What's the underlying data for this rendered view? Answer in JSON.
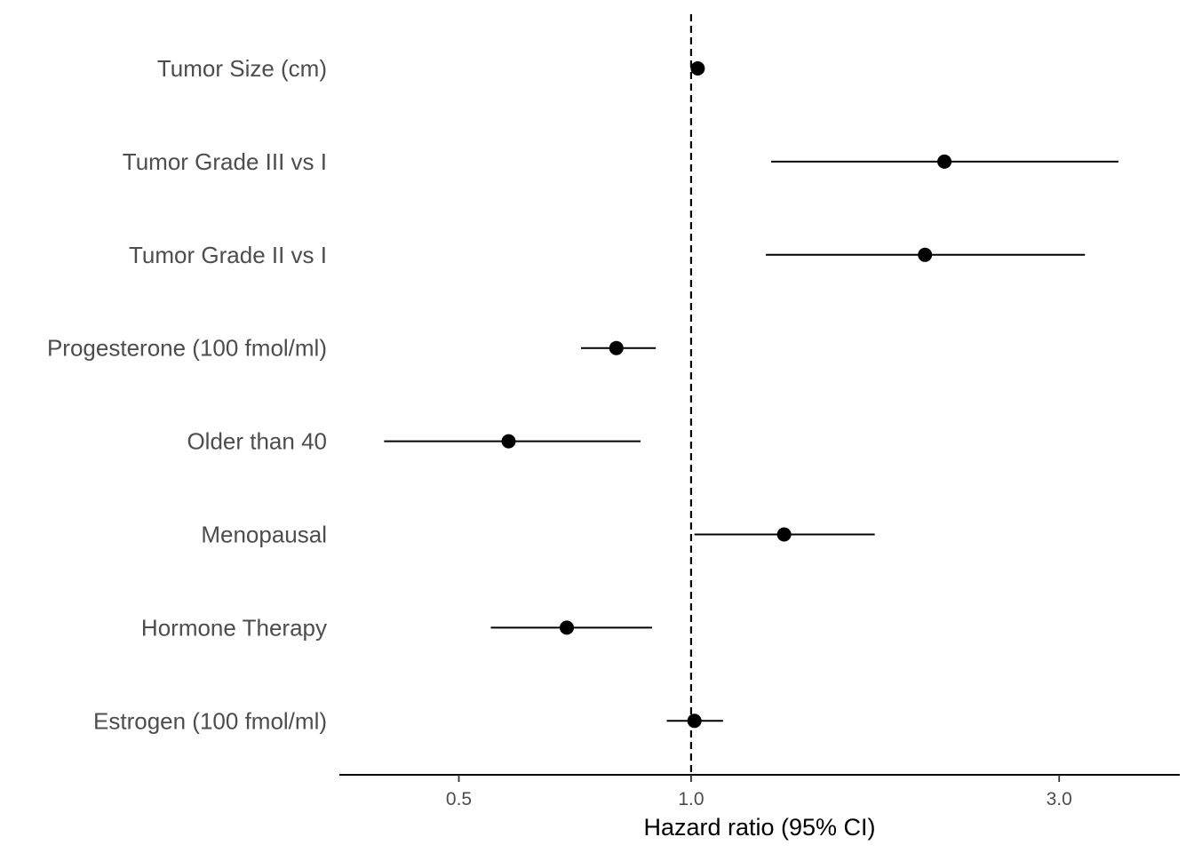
{
  "chart_data": {
    "type": "forest",
    "xlabel": "Hazard ratio (95% CI)",
    "x_scale": "log",
    "xlim": [
      0.35,
      4.3
    ],
    "x_ticks": [
      {
        "value": 0.5,
        "label": "0.5"
      },
      {
        "value": 1.0,
        "label": "1.0"
      },
      {
        "value": 3.0,
        "label": "3.0"
      }
    ],
    "reference_line": 1.0,
    "grid": false,
    "rows": [
      {
        "label": "Tumor Size (cm)",
        "hr": 1.02,
        "lower": 1.01,
        "upper": 1.03
      },
      {
        "label": "Tumor Grade III vs I",
        "hr": 2.13,
        "lower": 1.27,
        "upper": 3.58
      },
      {
        "label": "Tumor Grade II vs I",
        "hr": 2.01,
        "lower": 1.25,
        "upper": 3.24
      },
      {
        "label": "Progesterone (100 fmol/ml)",
        "hr": 0.8,
        "lower": 0.72,
        "upper": 0.9
      },
      {
        "label": "Older than 40",
        "hr": 0.58,
        "lower": 0.4,
        "upper": 0.86
      },
      {
        "label": "Menopausal",
        "hr": 1.32,
        "lower": 1.01,
        "upper": 1.73
      },
      {
        "label": "Hormone Therapy",
        "hr": 0.69,
        "lower": 0.55,
        "upper": 0.89
      },
      {
        "label": "Estrogen (100 fmol/ml)",
        "hr": 1.01,
        "lower": 0.93,
        "upper": 1.1
      }
    ]
  }
}
